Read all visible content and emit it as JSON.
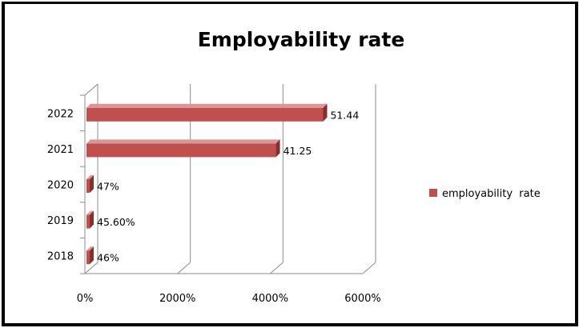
{
  "chart_data": {
    "type": "bar",
    "orientation": "horizontal",
    "three_d": true,
    "title": "Employability rate",
    "xlabel": "",
    "ylabel": "",
    "categories": [
      "2018",
      "2019",
      "2020",
      "2021",
      "2022"
    ],
    "series": [
      {
        "name": "employability  rate",
        "color": "#c0504d",
        "values": [
          0.46,
          0.456,
          0.47,
          41.25,
          51.44
        ],
        "data_labels": [
          "46%",
          "45.60%",
          "47%",
          "41.25",
          "51.44"
        ]
      }
    ],
    "xlim": [
      0,
      60
    ],
    "x_ticks": [
      0,
      20,
      40,
      60
    ],
    "x_tick_labels": [
      "0%",
      "2000%",
      "4000%",
      "6000%"
    ],
    "grid": "vertical",
    "legend_position": "right"
  }
}
